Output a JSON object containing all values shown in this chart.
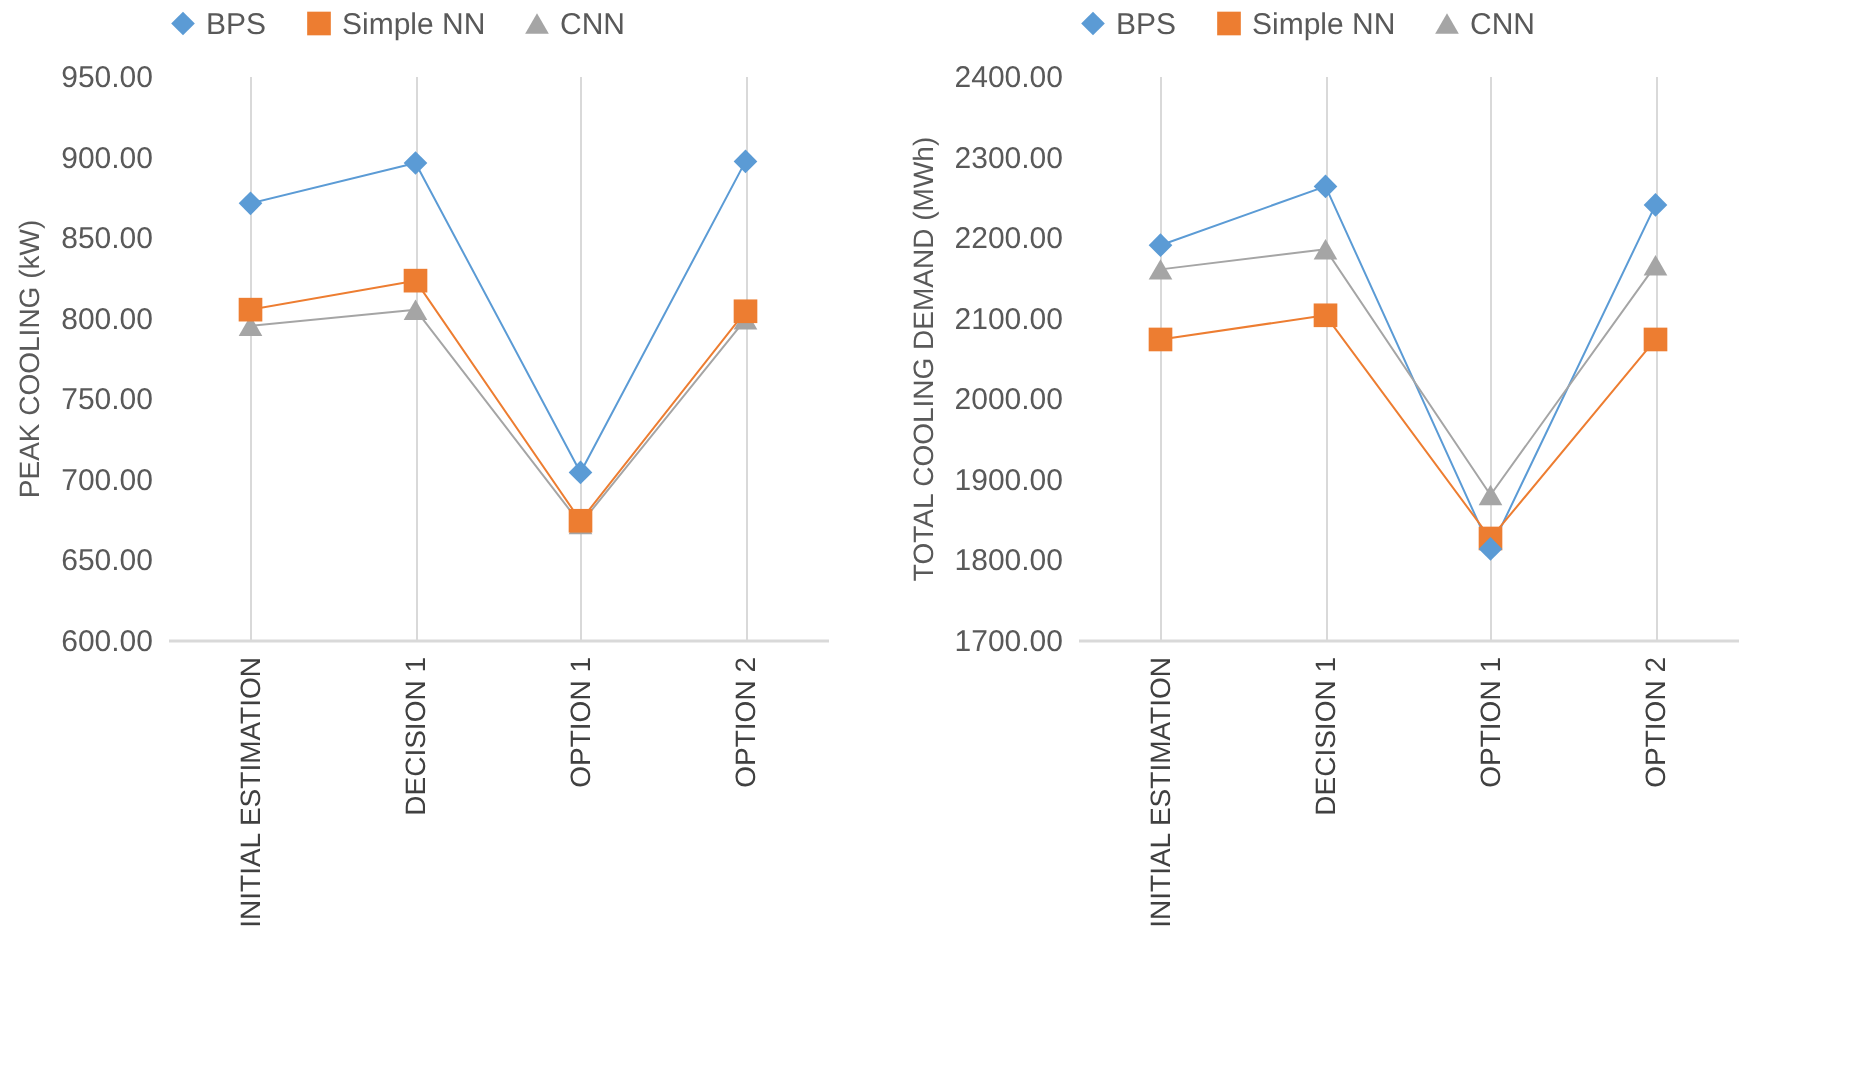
{
  "chart_data": [
    {
      "type": "line",
      "ylabel": "PEAK COOLING (kW)",
      "categories": [
        "INITIAL  ESTIMATION",
        "DECISION 1",
        "OPTION 1",
        "OPTION 2"
      ],
      "ylim": [
        600,
        950
      ],
      "yticks": [
        {
          "value": 600,
          "label": "600.00"
        },
        {
          "value": 650,
          "label": "650.00"
        },
        {
          "value": 700,
          "label": "700.00"
        },
        {
          "value": 750,
          "label": "750.00"
        },
        {
          "value": 800,
          "label": "800.00"
        },
        {
          "value": 850,
          "label": "850.00"
        },
        {
          "value": 900,
          "label": "900.00"
        },
        {
          "value": 950,
          "label": "950.00"
        }
      ],
      "grid": "x",
      "legend": "top",
      "series": [
        {
          "name": "BPS",
          "color": "#5b9bd5",
          "marker": "diamond",
          "values": [
            871,
            896,
            704,
            897
          ]
        },
        {
          "name": "Simple NN",
          "color": "#ed7d31",
          "marker": "square",
          "values": [
            805,
            823,
            674,
            804
          ]
        },
        {
          "name": "CNN",
          "color": "#a5a5a5",
          "marker": "triangle",
          "values": [
            795,
            805,
            672,
            799
          ]
        }
      ]
    },
    {
      "type": "line",
      "ylabel": "TOTAL COOLING DEMAND (MWh)",
      "categories": [
        "INITIAL  ESTIMATION",
        "DECISION 1",
        "OPTION 1",
        "OPTION 2"
      ],
      "ylim": [
        1700,
        2400
      ],
      "yticks": [
        {
          "value": 1700,
          "label": "1700.00"
        },
        {
          "value": 1800,
          "label": "1800.00"
        },
        {
          "value": 1900,
          "label": "1900.00"
        },
        {
          "value": 2000,
          "label": "2000.00"
        },
        {
          "value": 2100,
          "label": "2100.00"
        },
        {
          "value": 2200,
          "label": "2200.00"
        },
        {
          "value": 2300,
          "label": "2300.00"
        },
        {
          "value": 2400,
          "label": "2400.00"
        }
      ],
      "grid": "x",
      "legend": "top",
      "series": [
        {
          "name": "BPS",
          "color": "#5b9bd5",
          "marker": "diamond",
          "values": [
            2190,
            2263,
            1813,
            2240
          ]
        },
        {
          "name": "Simple NN",
          "color": "#ed7d31",
          "marker": "square",
          "values": [
            2073,
            2103,
            1826,
            2073
          ]
        },
        {
          "name": "CNN",
          "color": "#a5a5a5",
          "marker": "triangle",
          "values": [
            2160,
            2185,
            1880,
            2165
          ]
        }
      ]
    }
  ]
}
